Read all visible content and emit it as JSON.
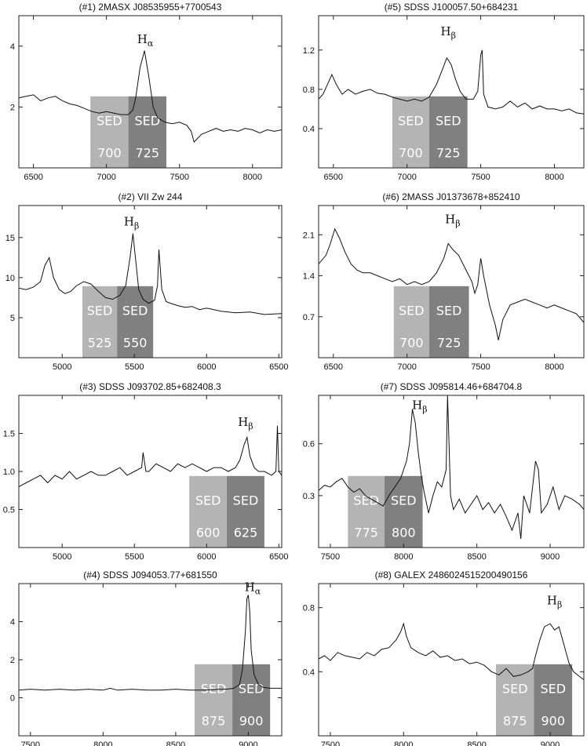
{
  "colors": {
    "spectrum": "#111111",
    "band_light": "#b4b4b4",
    "band_dark": "#808080",
    "frame": "#222222",
    "sed_text": "#ffffff"
  },
  "chart_data": [
    {
      "type": "line",
      "title": "(#1) 2MASX J08535955+7700543",
      "xlim": [
        6400,
        8200
      ],
      "ylim": [
        0,
        5
      ],
      "xticks": [
        6500,
        7000,
        7500,
        8000
      ],
      "yticks": [
        2,
        4
      ],
      "ytick_labels": [
        "2",
        "4"
      ],
      "line": {
        "label": "H",
        "sub": "α",
        "x": 7265,
        "y": 4.1
      },
      "bands": [
        {
          "label": "SED",
          "value": "700",
          "x0": 6890,
          "x1": 7150
        },
        {
          "label": "SED",
          "value": "725",
          "x0": 7150,
          "x1": 7410
        }
      ],
      "x": [
        6400,
        6450,
        6500,
        6550,
        6600,
        6650,
        6700,
        6750,
        6800,
        6850,
        6900,
        6950,
        7000,
        7050,
        7100,
        7150,
        7180,
        7200,
        7230,
        7260,
        7290,
        7320,
        7350,
        7400,
        7450,
        7500,
        7550,
        7580,
        7600,
        7620,
        7650,
        7700,
        7750,
        7800,
        7850,
        7900,
        7950,
        8000,
        8050,
        8100,
        8150,
        8200
      ],
      "y": [
        2.3,
        2.35,
        2.4,
        2.2,
        2.3,
        2.35,
        2.2,
        2.1,
        2.05,
        1.95,
        1.85,
        1.8,
        1.85,
        1.8,
        1.75,
        1.75,
        1.9,
        2.3,
        3.3,
        3.85,
        3.0,
        2.0,
        1.65,
        1.5,
        1.45,
        1.5,
        1.4,
        1.2,
        0.85,
        0.95,
        1.1,
        1.2,
        1.3,
        1.2,
        1.25,
        1.2,
        1.3,
        1.25,
        1.15,
        1.25,
        1.2,
        1.25
      ]
    },
    {
      "type": "line",
      "title": "(#2) VII Zw 244",
      "xlim": [
        4700,
        6520
      ],
      "ylim": [
        0,
        19
      ],
      "xticks": [
        5000,
        5500,
        6000,
        6500
      ],
      "yticks": [
        5,
        10,
        15
      ],
      "ytick_labels": [
        "5",
        "10",
        "15"
      ],
      "line": {
        "label": "H",
        "sub": "β",
        "x": 5480,
        "y": 16.5
      },
      "bands": [
        {
          "label": "SED",
          "value": "525",
          "x0": 5140,
          "x1": 5380
        },
        {
          "label": "SED",
          "value": "550",
          "x0": 5380,
          "x1": 5630
        }
      ],
      "x": [
        4700,
        4750,
        4800,
        4850,
        4880,
        4910,
        4940,
        4980,
        5020,
        5060,
        5100,
        5150,
        5200,
        5250,
        5300,
        5350,
        5400,
        5440,
        5470,
        5490,
        5510,
        5530,
        5560,
        5600,
        5640,
        5660,
        5670,
        5690,
        5720,
        5750,
        5800,
        5850,
        5900,
        5950,
        6000,
        6100,
        6200,
        6300,
        6400,
        6520
      ],
      "y": [
        8.7,
        8.5,
        8.8,
        9.5,
        11.5,
        12.5,
        10.0,
        8.5,
        8.0,
        8.3,
        9.0,
        9.5,
        9.2,
        8.3,
        7.5,
        7.3,
        7.8,
        9.0,
        12.5,
        15.5,
        12.0,
        8.5,
        7.3,
        6.8,
        7.2,
        9.0,
        13.5,
        8.5,
        7.0,
        6.8,
        6.5,
        6.3,
        6.4,
        6.0,
        6.2,
        5.8,
        5.6,
        5.7,
        5.4,
        5.5
      ]
    },
    {
      "type": "line",
      "title": "(#3) SDSS J093702.85+682408.3",
      "xlim": [
        4700,
        6520
      ],
      "ylim": [
        0,
        2
      ],
      "xticks": [
        5000,
        5500,
        6000,
        6500
      ],
      "yticks": [
        0.5,
        1.0,
        1.5
      ],
      "ytick_labels": [
        "0.5",
        "1.0",
        "1.5"
      ],
      "line": {
        "label": "H",
        "sub": "β",
        "x": 6270,
        "y": 1.6
      },
      "bands": [
        {
          "label": "SED",
          "value": "600",
          "x0": 5880,
          "x1": 6140
        },
        {
          "label": "SED",
          "value": "625",
          "x0": 6140,
          "x1": 6400
        }
      ],
      "x": [
        4700,
        4750,
        4800,
        4850,
        4900,
        4950,
        5000,
        5050,
        5100,
        5150,
        5200,
        5250,
        5300,
        5350,
        5400,
        5450,
        5500,
        5550,
        5560,
        5580,
        5600,
        5650,
        5700,
        5750,
        5800,
        5850,
        5900,
        5950,
        6000,
        6050,
        6100,
        6150,
        6200,
        6230,
        6260,
        6280,
        6300,
        6330,
        6360,
        6400,
        6450,
        6480,
        6490,
        6500,
        6520
      ],
      "y": [
        0.8,
        0.85,
        0.9,
        0.95,
        0.85,
        0.95,
        0.9,
        1.0,
        0.9,
        0.95,
        1.0,
        0.95,
        0.95,
        1.0,
        1.05,
        0.95,
        1.0,
        1.05,
        1.25,
        1.0,
        1.0,
        1.1,
        1.05,
        1.0,
        1.1,
        1.05,
        1.1,
        1.05,
        1.0,
        1.05,
        1.05,
        1.0,
        1.05,
        1.15,
        1.35,
        1.45,
        1.2,
        1.05,
        1.0,
        1.0,
        0.95,
        1.0,
        1.6,
        1.0,
        0.95
      ]
    },
    {
      "type": "line",
      "title": "(#4) SDSS J094053.77+681550",
      "xlim": [
        7420,
        9230
      ],
      "ylim": [
        -2,
        6
      ],
      "xticks": [
        7500,
        8000,
        8500,
        9000
      ],
      "yticks": [
        0,
        2,
        4
      ],
      "ytick_labels": [
        "0",
        "2",
        "4"
      ],
      "line": {
        "label": "H",
        "sub": "α",
        "x": 9030,
        "y": 5.6
      },
      "bands": [
        {
          "label": "SED",
          "value": "875",
          "x0": 8630,
          "x1": 8890
        },
        {
          "label": "SED",
          "value": "900",
          "x0": 8890,
          "x1": 9150
        }
      ],
      "x": [
        7420,
        7500,
        7600,
        7700,
        7800,
        7900,
        8000,
        8050,
        8100,
        8200,
        8300,
        8400,
        8500,
        8600,
        8700,
        8800,
        8850,
        8900,
        8940,
        8960,
        8980,
        8990,
        9000,
        9010,
        9020,
        9040,
        9070,
        9100,
        9150,
        9230
      ],
      "y": [
        0.4,
        0.45,
        0.4,
        0.45,
        0.4,
        0.45,
        0.4,
        0.5,
        0.4,
        0.45,
        0.4,
        0.4,
        0.45,
        0.4,
        0.4,
        0.45,
        0.45,
        0.5,
        0.7,
        1.5,
        3.5,
        5.2,
        5.4,
        4.5,
        2.5,
        1.2,
        0.7,
        0.55,
        0.5,
        0.5
      ]
    },
    {
      "type": "line",
      "title": "(#5) SDSS J100057.50+684231",
      "xlim": [
        6400,
        8200
      ],
      "ylim": [
        0,
        1.55
      ],
      "xticks": [
        6500,
        7000,
        7500,
        8000
      ],
      "yticks": [
        0.4,
        0.8,
        1.2
      ],
      "ytick_labels": [
        "0.4",
        "0.8",
        "1.2"
      ],
      "line": {
        "label": "H",
        "sub": "β",
        "x": 7280,
        "y": 1.35
      },
      "bands": [
        {
          "label": "SED",
          "value": "700",
          "x0": 6900,
          "x1": 7150
        },
        {
          "label": "SED",
          "value": "725",
          "x0": 7150,
          "x1": 7410
        }
      ],
      "x": [
        6400,
        6430,
        6460,
        6490,
        6520,
        6560,
        6600,
        6650,
        6700,
        6750,
        6800,
        6850,
        6900,
        6950,
        7000,
        7050,
        7100,
        7150,
        7200,
        7240,
        7270,
        7300,
        7330,
        7360,
        7400,
        7450,
        7480,
        7500,
        7510,
        7520,
        7550,
        7600,
        7650,
        7700,
        7750,
        7800,
        7850,
        7900,
        7950,
        8000,
        8050,
        8100,
        8150,
        8200
      ],
      "y": [
        0.7,
        0.75,
        0.85,
        0.95,
        0.85,
        0.75,
        0.8,
        0.75,
        0.78,
        0.8,
        0.76,
        0.75,
        0.72,
        0.7,
        0.68,
        0.7,
        0.68,
        0.72,
        0.85,
        1.0,
        1.12,
        1.05,
        0.9,
        0.78,
        0.7,
        0.7,
        0.78,
        1.15,
        1.2,
        0.75,
        0.62,
        0.6,
        0.62,
        0.68,
        0.62,
        0.66,
        0.6,
        0.63,
        0.6,
        0.6,
        0.58,
        0.6,
        0.56,
        0.55
      ]
    },
    {
      "type": "line",
      "title": "(#6) 2MASS J01373678+852410",
      "xlim": [
        6400,
        8200
      ],
      "ylim": [
        0,
        2.6
      ],
      "xticks": [
        6500,
        7000,
        7500,
        8000
      ],
      "yticks": [
        0.7,
        1.4,
        2.1
      ],
      "ytick_labels": [
        "0.7",
        "1.4",
        "2.1"
      ],
      "line": {
        "label": "H",
        "sub": "β",
        "x": 7310,
        "y": 2.3
      },
      "bands": [
        {
          "label": "SED",
          "value": "700",
          "x0": 6910,
          "x1": 7150
        },
        {
          "label": "SED",
          "value": "725",
          "x0": 7150,
          "x1": 7420
        }
      ],
      "x": [
        6400,
        6450,
        6480,
        6510,
        6540,
        6580,
        6620,
        6660,
        6700,
        6750,
        6800,
        6850,
        6900,
        6950,
        7000,
        7050,
        7100,
        7150,
        7200,
        7250,
        7280,
        7310,
        7350,
        7400,
        7440,
        7460,
        7480,
        7500,
        7520,
        7560,
        7600,
        7620,
        7650,
        7700,
        7750,
        7800,
        7850,
        7900,
        7950,
        8000,
        8050,
        8100,
        8150,
        8200
      ],
      "y": [
        1.6,
        1.75,
        1.95,
        2.2,
        2.05,
        1.8,
        1.6,
        1.5,
        1.45,
        1.45,
        1.4,
        1.35,
        1.3,
        1.35,
        1.25,
        1.3,
        1.25,
        1.3,
        1.45,
        1.7,
        1.95,
        1.85,
        1.75,
        1.5,
        1.3,
        1.1,
        1.25,
        1.7,
        1.4,
        0.9,
        0.55,
        0.3,
        0.65,
        0.9,
        0.95,
        1.0,
        0.95,
        0.9,
        0.85,
        0.9,
        0.85,
        0.8,
        0.75,
        0.6
      ]
    },
    {
      "type": "line",
      "title": "(#7) SDSS J095814.46+684704.8",
      "xlim": [
        7420,
        9230
      ],
      "ylim": [
        0,
        0.88
      ],
      "xticks": [
        7500,
        8000,
        8500,
        9000
      ],
      "yticks": [
        0.3,
        0.6
      ],
      "ytick_labels": [
        "0.3",
        "0.6"
      ],
      "line": {
        "label": "H",
        "sub": "β",
        "x": 8110,
        "y": 0.8
      },
      "bands": [
        {
          "label": "SED",
          "value": "775",
          "x0": 7620,
          "x1": 7870
        },
        {
          "label": "SED",
          "value": "800",
          "x0": 7870,
          "x1": 8130
        }
      ],
      "x": [
        7420,
        7460,
        7500,
        7540,
        7580,
        7620,
        7660,
        7700,
        7740,
        7780,
        7820,
        7860,
        7900,
        7940,
        7980,
        8020,
        8040,
        8060,
        8080,
        8100,
        8120,
        8140,
        8170,
        8200,
        8230,
        8260,
        8290,
        8300,
        8310,
        8320,
        8340,
        8380,
        8420,
        8460,
        8500,
        8540,
        8580,
        8620,
        8660,
        8700,
        8740,
        8780,
        8800,
        8820,
        8860,
        8900,
        8920,
        8940,
        8980,
        9020,
        9060,
        9100,
        9150,
        9200,
        9230
      ],
      "y": [
        0.33,
        0.36,
        0.35,
        0.38,
        0.4,
        0.35,
        0.32,
        0.34,
        0.3,
        0.28,
        0.26,
        0.24,
        0.3,
        0.35,
        0.4,
        0.5,
        0.6,
        0.8,
        0.72,
        0.55,
        0.42,
        0.32,
        0.2,
        0.3,
        0.38,
        0.35,
        0.45,
        0.88,
        0.6,
        0.3,
        0.22,
        0.28,
        0.2,
        0.25,
        0.3,
        0.22,
        0.26,
        0.2,
        0.25,
        0.18,
        0.1,
        0.2,
        0.05,
        0.3,
        0.2,
        0.5,
        0.45,
        0.2,
        0.25,
        0.35,
        0.22,
        0.3,
        0.28,
        0.25,
        0.22
      ]
    },
    {
      "type": "line",
      "title": "(#8) GALEX 2486024515200490156",
      "xlim": [
        7420,
        9230
      ],
      "ylim": [
        0,
        0.95
      ],
      "xticks": [
        7500,
        8000,
        8500,
        9000
      ],
      "yticks": [
        0.4,
        0.8
      ],
      "ytick_labels": [
        "0.4",
        "0.8"
      ],
      "line": {
        "label": "H",
        "sub": "β",
        "x": 9030,
        "y": 0.82
      },
      "bands": [
        {
          "label": "SED",
          "value": "875",
          "x0": 8630,
          "x1": 8890
        },
        {
          "label": "SED",
          "value": "900",
          "x0": 8890,
          "x1": 9150
        }
      ],
      "x": [
        7420,
        7460,
        7500,
        7550,
        7600,
        7650,
        7700,
        7750,
        7800,
        7850,
        7900,
        7950,
        7980,
        8000,
        8020,
        8050,
        8100,
        8150,
        8200,
        8250,
        8300,
        8350,
        8400,
        8450,
        8500,
        8550,
        8600,
        8650,
        8700,
        8750,
        8800,
        8850,
        8880,
        8900,
        8930,
        8960,
        9000,
        9030,
        9060,
        9100,
        9130,
        9160,
        9200,
        9230
      ],
      "y": [
        0.48,
        0.5,
        0.47,
        0.52,
        0.5,
        0.49,
        0.48,
        0.52,
        0.5,
        0.54,
        0.55,
        0.6,
        0.65,
        0.7,
        0.62,
        0.55,
        0.52,
        0.5,
        0.53,
        0.49,
        0.5,
        0.47,
        0.48,
        0.45,
        0.46,
        0.44,
        0.4,
        0.38,
        0.42,
        0.37,
        0.38,
        0.4,
        0.42,
        0.5,
        0.6,
        0.68,
        0.7,
        0.66,
        0.68,
        0.55,
        0.45,
        0.4,
        0.37,
        0.35
      ]
    }
  ]
}
